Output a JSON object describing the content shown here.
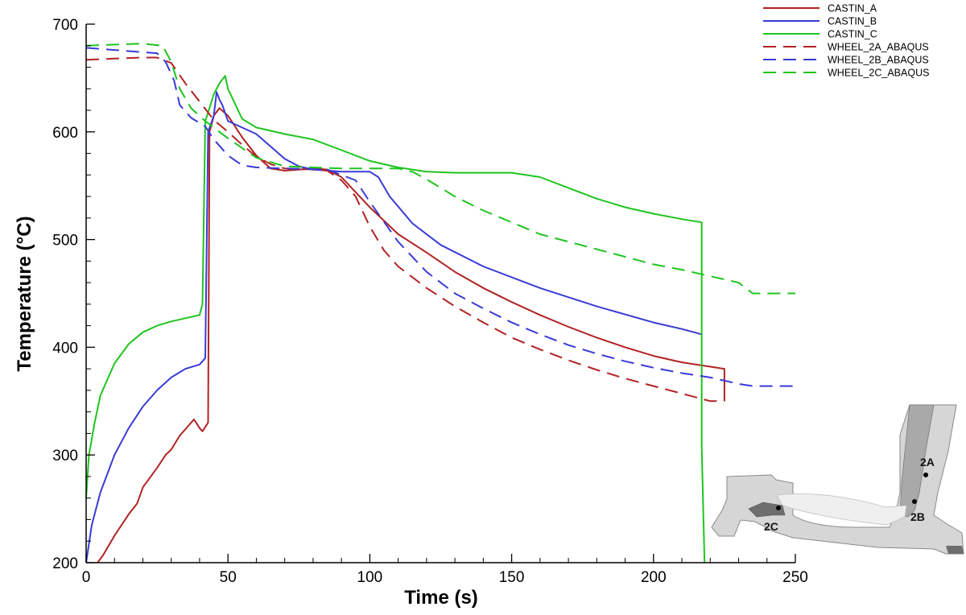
{
  "chart_data": {
    "type": "line",
    "xlabel": "Time (s)",
    "ylabel": "Temperature (°C)",
    "xlim": [
      0,
      250
    ],
    "ylim": [
      200,
      700
    ],
    "x_ticks": [
      0,
      50,
      100,
      150,
      200,
      250
    ],
    "y_ticks": [
      200,
      300,
      400,
      500,
      600,
      700
    ],
    "grid": false,
    "legend_position": "top-right",
    "series": [
      {
        "name": "CASTIN_A",
        "color": "#b22222",
        "dash": "solid",
        "points": [
          [
            4,
            200
          ],
          [
            6,
            207
          ],
          [
            10,
            225
          ],
          [
            15,
            245
          ],
          [
            18,
            255
          ],
          [
            20,
            270
          ],
          [
            25,
            288
          ],
          [
            28,
            300
          ],
          [
            30,
            305
          ],
          [
            33,
            318
          ],
          [
            36,
            327
          ],
          [
            38,
            333
          ],
          [
            40,
            325
          ],
          [
            41,
            322
          ],
          [
            43,
            330
          ],
          [
            43.5,
            600
          ],
          [
            45,
            615
          ],
          [
            47,
            622
          ],
          [
            50,
            615
          ],
          [
            55,
            595
          ],
          [
            60,
            578
          ],
          [
            65,
            566
          ],
          [
            70,
            564
          ],
          [
            80,
            566
          ],
          [
            85,
            565
          ],
          [
            90,
            558
          ],
          [
            100,
            530
          ],
          [
            110,
            505
          ],
          [
            120,
            488
          ],
          [
            130,
            470
          ],
          [
            140,
            455
          ],
          [
            150,
            442
          ],
          [
            160,
            430
          ],
          [
            170,
            419
          ],
          [
            180,
            409
          ],
          [
            190,
            400
          ],
          [
            200,
            392
          ],
          [
            210,
            386
          ],
          [
            220,
            382
          ],
          [
            225,
            380
          ],
          [
            225,
            350
          ]
        ]
      },
      {
        "name": "CASTIN_B",
        "color": "#3a3ad6",
        "dash": "solid",
        "points": [
          [
            0,
            200
          ],
          [
            2,
            235
          ],
          [
            5,
            265
          ],
          [
            10,
            300
          ],
          [
            15,
            325
          ],
          [
            20,
            345
          ],
          [
            25,
            360
          ],
          [
            30,
            372
          ],
          [
            35,
            380
          ],
          [
            40,
            384
          ],
          [
            42,
            390
          ],
          [
            43,
            600
          ],
          [
            45,
            615
          ],
          [
            46,
            637
          ],
          [
            47,
            630
          ],
          [
            48,
            625
          ],
          [
            50,
            610
          ],
          [
            60,
            598
          ],
          [
            70,
            575
          ],
          [
            75,
            568
          ],
          [
            80,
            565
          ],
          [
            90,
            563
          ],
          [
            100,
            563
          ],
          [
            103,
            558
          ],
          [
            107,
            540
          ],
          [
            115,
            515
          ],
          [
            125,
            495
          ],
          [
            140,
            475
          ],
          [
            160,
            455
          ],
          [
            180,
            438
          ],
          [
            200,
            423
          ],
          [
            210,
            417
          ],
          [
            217,
            412
          ]
        ]
      },
      {
        "name": "CASTIN_C",
        "color": "#1fc41f",
        "dash": "solid",
        "points": [
          [
            0,
            260
          ],
          [
            1,
            300
          ],
          [
            3,
            330
          ],
          [
            5,
            355
          ],
          [
            10,
            385
          ],
          [
            15,
            403
          ],
          [
            20,
            414
          ],
          [
            25,
            420
          ],
          [
            30,
            424
          ],
          [
            35,
            427
          ],
          [
            40,
            430
          ],
          [
            41,
            440
          ],
          [
            42,
            610
          ],
          [
            43,
            618
          ],
          [
            45,
            635
          ],
          [
            47,
            645
          ],
          [
            49,
            652
          ],
          [
            50,
            640
          ],
          [
            55,
            612
          ],
          [
            60,
            604
          ],
          [
            70,
            598
          ],
          [
            80,
            593
          ],
          [
            90,
            583
          ],
          [
            100,
            573
          ],
          [
            110,
            567
          ],
          [
            120,
            563
          ],
          [
            130,
            562
          ],
          [
            150,
            562
          ],
          [
            160,
            558
          ],
          [
            170,
            548
          ],
          [
            180,
            538
          ],
          [
            190,
            530
          ],
          [
            200,
            524
          ],
          [
            210,
            519
          ],
          [
            217,
            516
          ],
          [
            217,
            307
          ],
          [
            218,
            200
          ]
        ]
      },
      {
        "name": "WHEEL_2A_ABAQUS",
        "color": "#b22222",
        "dash": "dashed",
        "points": [
          [
            0,
            667
          ],
          [
            10,
            668
          ],
          [
            20,
            669
          ],
          [
            25,
            669
          ],
          [
            30,
            664
          ],
          [
            35,
            645
          ],
          [
            40,
            628
          ],
          [
            45,
            611
          ],
          [
            50,
            600
          ],
          [
            55,
            588
          ],
          [
            60,
            577
          ],
          [
            65,
            570
          ],
          [
            70,
            566
          ],
          [
            80,
            565
          ],
          [
            85,
            564
          ],
          [
            90,
            555
          ],
          [
            95,
            540
          ],
          [
            100,
            512
          ],
          [
            105,
            490
          ],
          [
            110,
            475
          ],
          [
            120,
            455
          ],
          [
            130,
            438
          ],
          [
            140,
            423
          ],
          [
            150,
            409
          ],
          [
            160,
            398
          ],
          [
            170,
            388
          ],
          [
            180,
            379
          ],
          [
            190,
            371
          ],
          [
            200,
            364
          ],
          [
            210,
            357
          ],
          [
            220,
            350
          ],
          [
            225,
            350
          ]
        ]
      },
      {
        "name": "WHEEL_2B_ABAQUS",
        "color": "#3a3ad6",
        "dash": "dashed",
        "points": [
          [
            0,
            678
          ],
          [
            10,
            676
          ],
          [
            20,
            674
          ],
          [
            25,
            673
          ],
          [
            28,
            665
          ],
          [
            31,
            648
          ],
          [
            33,
            625
          ],
          [
            37,
            613
          ],
          [
            42,
            605
          ],
          [
            45,
            593
          ],
          [
            50,
            578
          ],
          [
            55,
            569
          ],
          [
            60,
            567
          ],
          [
            70,
            566
          ],
          [
            85,
            565
          ],
          [
            95,
            555
          ],
          [
            100,
            535
          ],
          [
            110,
            498
          ],
          [
            120,
            470
          ],
          [
            130,
            450
          ],
          [
            140,
            436
          ],
          [
            150,
            423
          ],
          [
            160,
            412
          ],
          [
            170,
            402
          ],
          [
            180,
            394
          ],
          [
            190,
            387
          ],
          [
            200,
            381
          ],
          [
            210,
            376
          ],
          [
            220,
            372
          ],
          [
            230,
            366
          ],
          [
            235,
            364
          ],
          [
            250,
            364
          ]
        ]
      },
      {
        "name": "WHEEL_2C_ABAQUS",
        "color": "#1fc41f",
        "dash": "dashed",
        "points": [
          [
            0,
            680
          ],
          [
            10,
            681
          ],
          [
            20,
            682
          ],
          [
            27,
            680
          ],
          [
            30,
            665
          ],
          [
            33,
            640
          ],
          [
            37,
            622
          ],
          [
            42,
            610
          ],
          [
            47,
            600
          ],
          [
            50,
            594
          ],
          [
            55,
            585
          ],
          [
            60,
            576
          ],
          [
            65,
            572
          ],
          [
            70,
            568
          ],
          [
            80,
            567
          ],
          [
            90,
            566
          ],
          [
            100,
            566
          ],
          [
            110,
            566
          ],
          [
            115,
            563
          ],
          [
            120,
            556
          ],
          [
            130,
            540
          ],
          [
            140,
            527
          ],
          [
            150,
            516
          ],
          [
            160,
            505
          ],
          [
            170,
            498
          ],
          [
            180,
            491
          ],
          [
            190,
            484
          ],
          [
            200,
            477
          ],
          [
            210,
            472
          ],
          [
            220,
            466
          ],
          [
            230,
            460
          ],
          [
            235,
            450
          ],
          [
            250,
            450
          ]
        ]
      }
    ]
  },
  "inset": {
    "point_labels": [
      "2A",
      "2B",
      "2C"
    ]
  }
}
